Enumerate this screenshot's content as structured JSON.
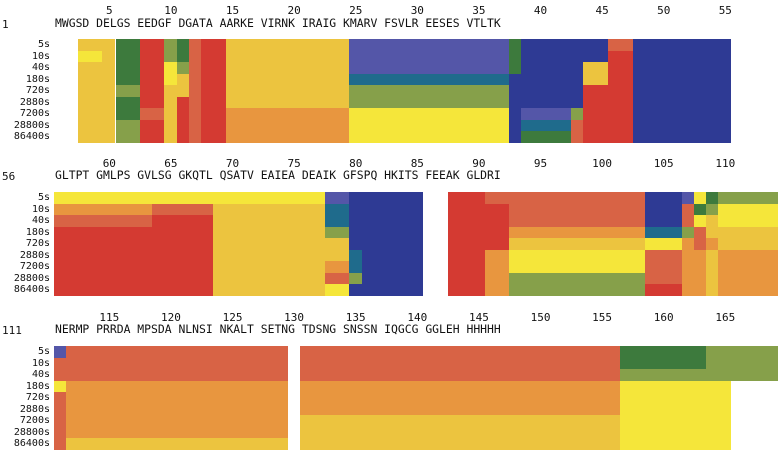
{
  "colors": {
    "dark_blue": "#2e3a94",
    "slate_blue": "#5456a8",
    "teal": "#1f6b8c",
    "dark_green": "#3d7a3d",
    "olive_green": "#86a04a",
    "yellow": "#f5e63a",
    "gold": "#ecc43f",
    "orange": "#e8963f",
    "red_orange": "#d86345",
    "red": "#d43a32"
  },
  "timepoints": [
    "5s",
    "10s",
    "40s",
    "180s",
    "720s",
    "2880s",
    "7200s",
    "28800s",
    "86400s"
  ],
  "blocks": [
    {
      "start_residue": "1",
      "sequence": "MWGSD DELGS EEDGF DGATA AARKE VIRNK IRAIG KMARV FSVLR EESES VTLTK",
      "ticks": [
        {
          "label": "5",
          "residue": 5
        },
        {
          "label": "10",
          "residue": 10
        },
        {
          "label": "15",
          "residue": 15
        },
        {
          "label": "20",
          "residue": 20
        },
        {
          "label": "25",
          "residue": 25
        },
        {
          "label": "30",
          "residue": 30
        },
        {
          "label": "35",
          "residue": 35
        },
        {
          "label": "40",
          "residue": 40
        },
        {
          "label": "45",
          "residue": 45
        },
        {
          "label": "50",
          "residue": 50
        },
        {
          "label": "55",
          "residue": 55
        }
      ]
    },
    {
      "start_residue": "56",
      "sequence": "GLTPT GMLPS GVLSG GKQTL QSATV EAIEA DEAIK GFSPQ HKITS FEEAK GLDRI",
      "ticks": [
        {
          "label": "60",
          "residue": 5
        },
        {
          "label": "65",
          "residue": 10
        },
        {
          "label": "70",
          "residue": 15
        },
        {
          "label": "75",
          "residue": 20
        },
        {
          "label": "80",
          "residue": 25
        },
        {
          "label": "85",
          "residue": 30
        },
        {
          "label": "90",
          "residue": 35
        },
        {
          "label": "95",
          "residue": 40
        },
        {
          "label": "100",
          "residue": 45
        },
        {
          "label": "105",
          "residue": 50
        },
        {
          "label": "110",
          "residue": 55
        }
      ]
    },
    {
      "start_residue": "111",
      "sequence": "NERMP PRRDA MPSDA NLNSI NKALT SETNG TDSNG SNSSN IQGCG GGLEH HHHHH",
      "ticks": [
        {
          "label": "115",
          "residue": 5
        },
        {
          "label": "120",
          "residue": 10
        },
        {
          "label": "125",
          "residue": 15
        },
        {
          "label": "130",
          "residue": 20
        },
        {
          "label": "135",
          "residue": 25
        },
        {
          "label": "140",
          "residue": 30
        },
        {
          "label": "145",
          "residue": 35
        },
        {
          "label": "150",
          "residue": 40
        },
        {
          "label": "155",
          "residue": 45
        },
        {
          "label": "160",
          "residue": 50
        },
        {
          "label": "165",
          "residue": 55
        }
      ]
    }
  ]
}
